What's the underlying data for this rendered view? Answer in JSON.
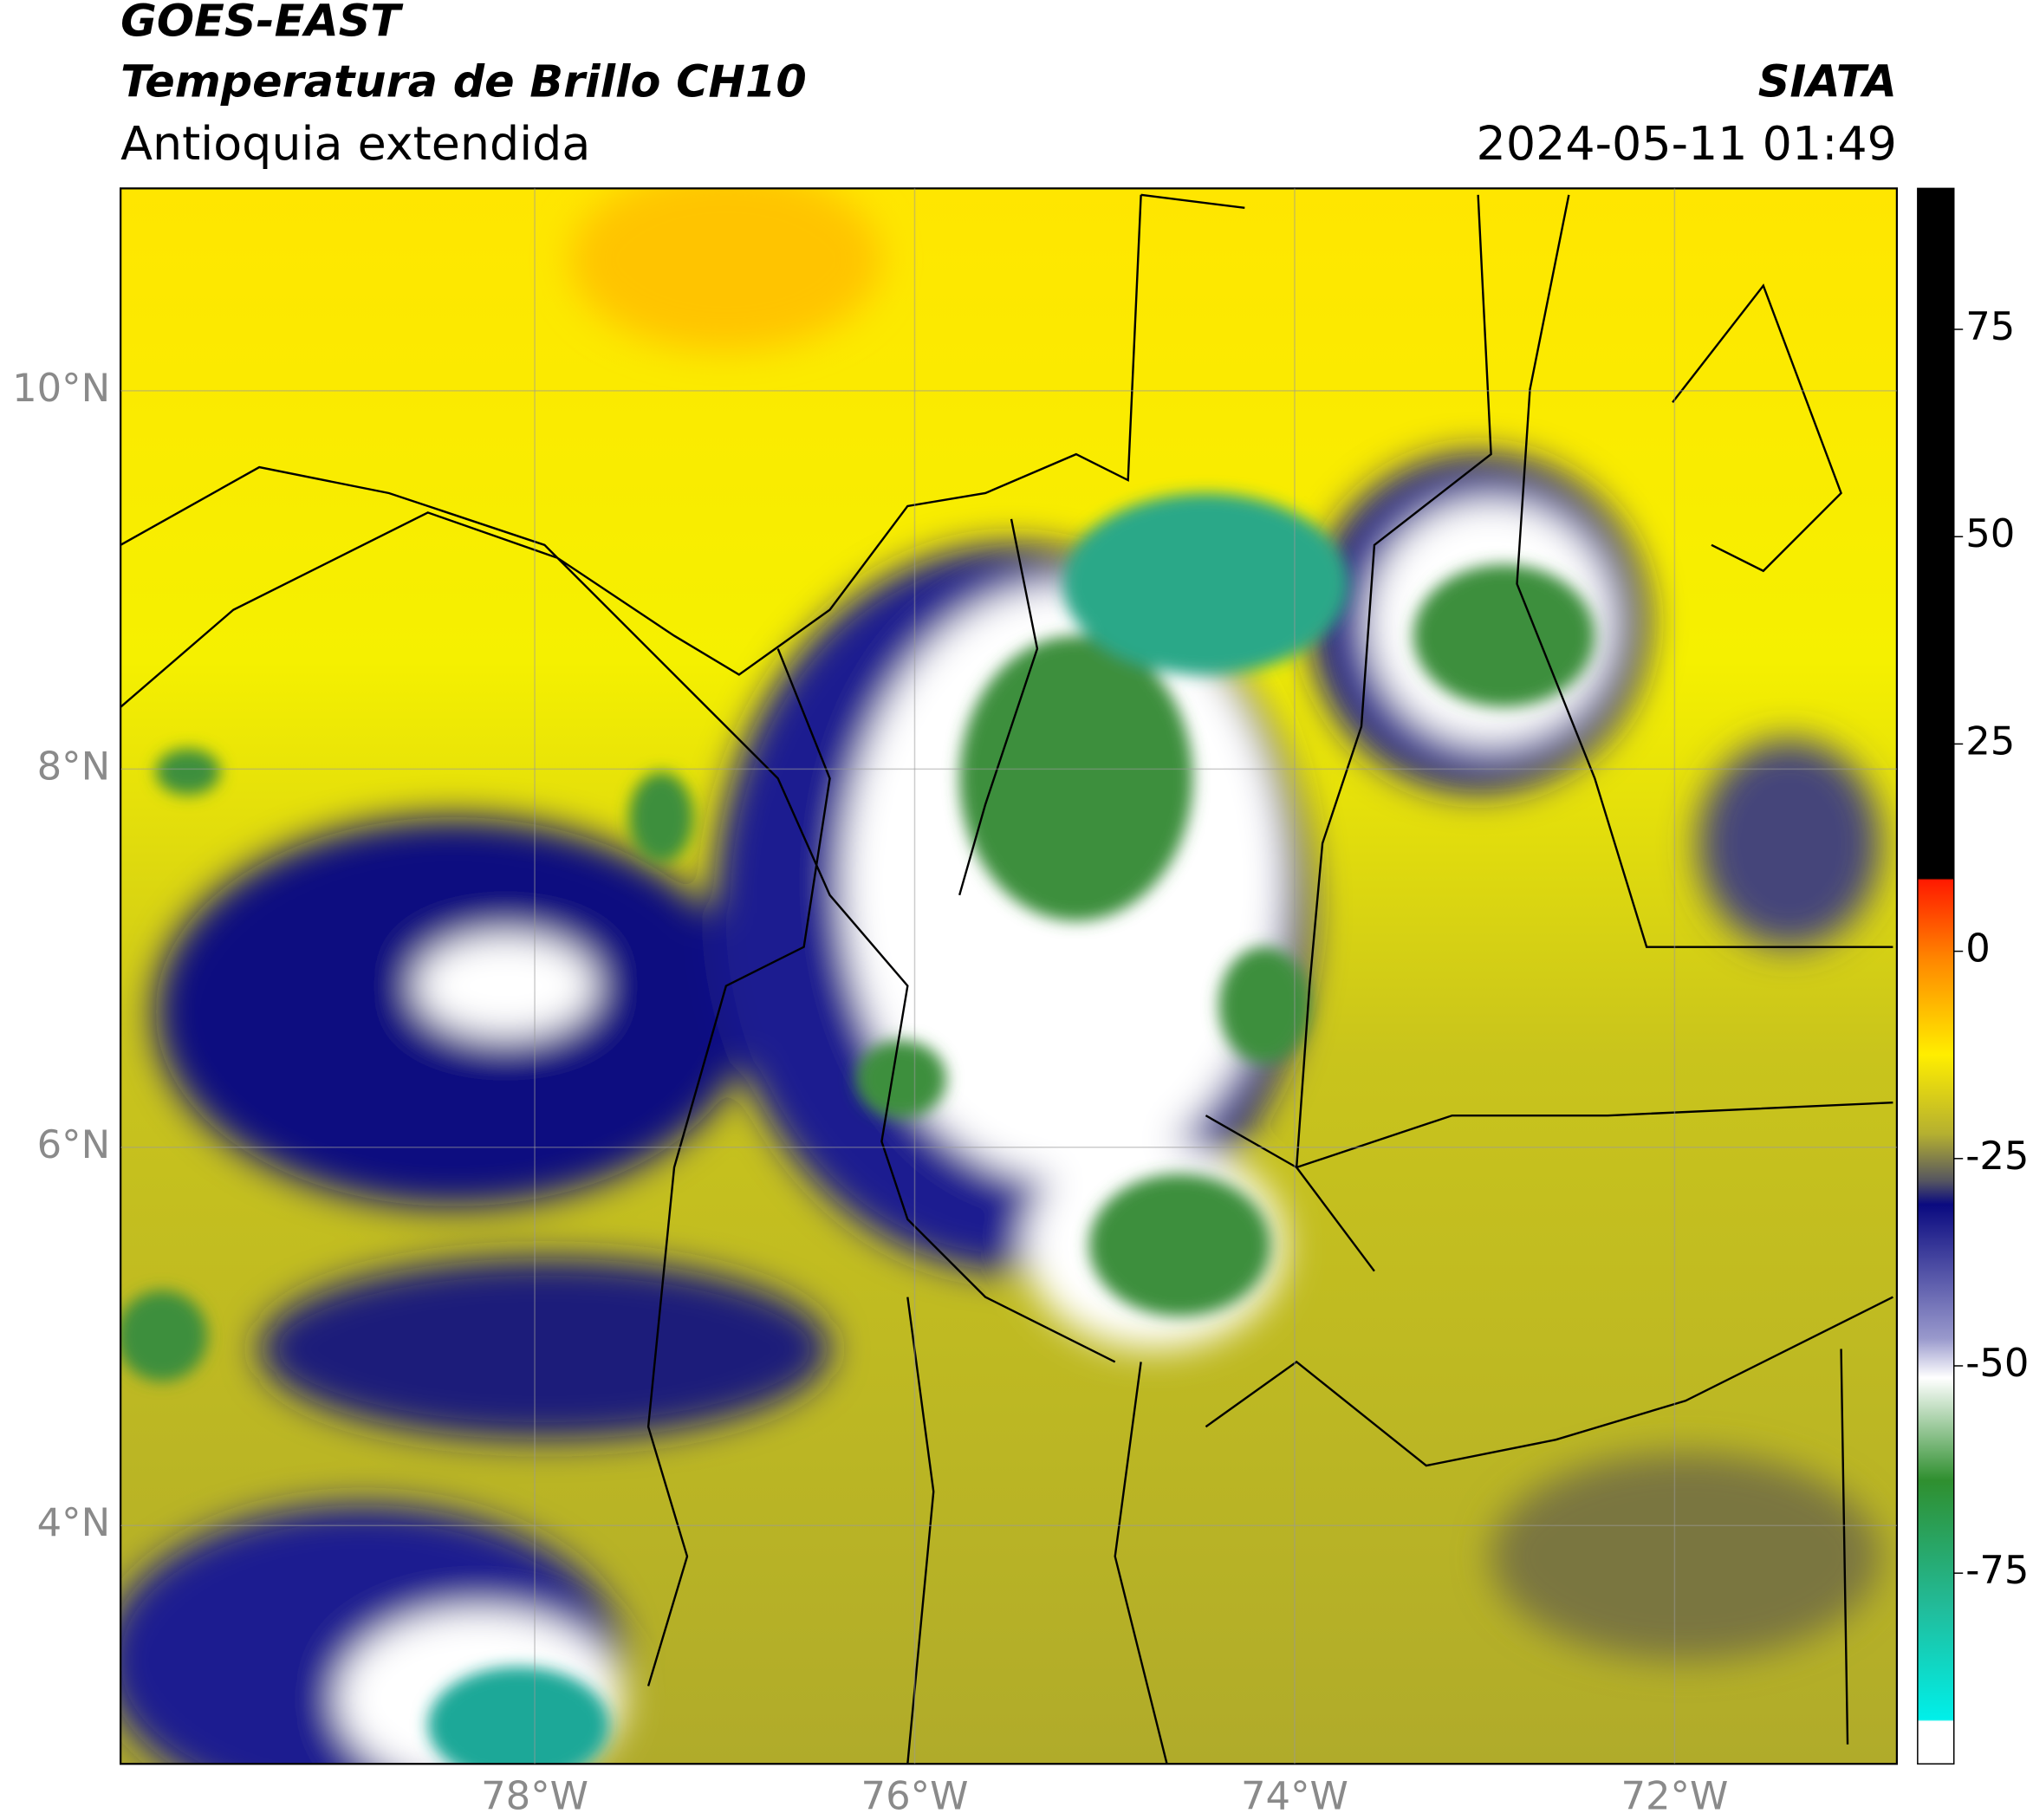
{
  "header": {
    "title": "GOES-EAST",
    "subtitle": "Temperatura de Brillo CH10",
    "region": "Antioquia extendida",
    "source": "SIATA",
    "timestamp": "2024-05-11 01:49"
  },
  "map": {
    "xlim": [
      -80.18,
      -70.83
    ],
    "ylim": [
      2.74,
      11.07
    ],
    "xticks": [
      {
        "value": -78,
        "label": "78°W"
      },
      {
        "value": -76,
        "label": "76°W"
      },
      {
        "value": -74,
        "label": "74°W"
      },
      {
        "value": -72,
        "label": "72°W"
      }
    ],
    "yticks": [
      {
        "value": 4,
        "label": "4°N"
      },
      {
        "value": 6,
        "label": "6°N"
      },
      {
        "value": 8,
        "label": "8°N"
      },
      {
        "value": 10,
        "label": "10°N"
      }
    ],
    "grid": true,
    "colorbar": {
      "clim": [
        -98,
        92
      ],
      "ticks": [
        75,
        50,
        25,
        0,
        -25,
        -50,
        -75
      ]
    }
  }
}
